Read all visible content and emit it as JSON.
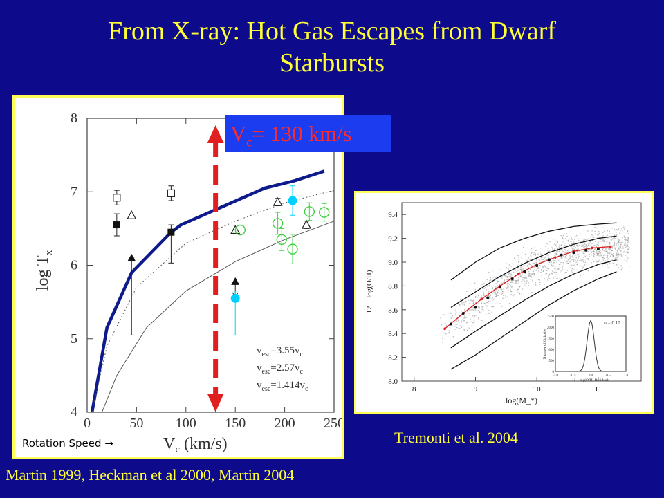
{
  "slide": {
    "title_line1": "From X-ray: Hot Gas Escapes from Dwarf",
    "title_line2": "Starbursts",
    "vc_label_prefix": "V",
    "vc_label_sub": "c",
    "vc_label_suffix": "= 130 km/s",
    "rotation_label": "Rotation Speed →",
    "cite_left": "Martin 1999, Heckman et al 2000, Martin 2004",
    "cite_right": "Tremonti et al. 2004"
  },
  "chart_data": [
    {
      "type": "scatter",
      "xlabel": "V_c (km/s)",
      "ylabel": "log T_x",
      "xlim": [
        0,
        250
      ],
      "ylim": [
        4,
        8
      ],
      "xticks": [
        "0",
        "50",
        "100",
        "150",
        "200",
        "250"
      ],
      "yticks": [
        "4",
        "5",
        "6",
        "7",
        "8"
      ],
      "curves": [
        {
          "name": "v_esc=3.55v_c",
          "style": "thick",
          "color": "#0d1a8c",
          "x": [
            5,
            20,
            45,
            85,
            95,
            180,
            210,
            240
          ],
          "y": [
            4.0,
            5.15,
            5.9,
            6.45,
            6.55,
            7.05,
            7.15,
            7.28
          ]
        },
        {
          "name": "v_esc=2.57v_c",
          "style": "dotted",
          "color": "#555555",
          "x": [
            5,
            20,
            50,
            100,
            150,
            200,
            250
          ],
          "y": [
            4.0,
            4.9,
            5.7,
            6.3,
            6.6,
            6.85,
            7.02
          ]
        },
        {
          "name": "v_esc=1.414v_c",
          "style": "thin",
          "color": "#555555",
          "x": [
            15,
            30,
            60,
            100,
            150,
            200,
            250
          ],
          "y": [
            4.0,
            4.5,
            5.15,
            5.65,
            6.05,
            6.35,
            6.6
          ]
        }
      ],
      "legend_text": [
        "v_esc=3.55v_c",
        "v_esc=2.57v_c",
        "v_esc=1.414v_c"
      ],
      "points": [
        {
          "x": 30,
          "y": 6.92,
          "marker": "open-square",
          "err": [
            0.1,
            0.1
          ]
        },
        {
          "x": 30,
          "y": 6.55,
          "marker": "filled-square",
          "err": [
            0.15,
            0.15
          ]
        },
        {
          "x": 45,
          "y": 6.68,
          "marker": "open-triangle",
          "err": [
            0.0,
            0.0
          ]
        },
        {
          "x": 45,
          "y": 6.1,
          "marker": "filled-triangle",
          "err": [
            1.05,
            0.0
          ]
        },
        {
          "x": 85,
          "y": 6.98,
          "marker": "open-square",
          "err": [
            0.1,
            0.1
          ]
        },
        {
          "x": 85,
          "y": 6.45,
          "marker": "filled-square",
          "err": [
            0.42,
            0.1
          ]
        },
        {
          "x": 150,
          "y": 6.48,
          "marker": "open-triangle",
          "err": [
            0.0,
            0.0
          ]
        },
        {
          "x": 150,
          "y": 5.78,
          "marker": "filled-triangle",
          "err": [
            0.0,
            0.0
          ],
          "upper_limit": true
        },
        {
          "x": 155,
          "y": 6.48,
          "marker": "open-circle",
          "color": "#40d040",
          "err": [
            0.0,
            0.0
          ]
        },
        {
          "x": 150,
          "y": 5.55,
          "marker": "filled-circle",
          "color": "#00d0ff",
          "err": [
            0.5,
            0.1
          ]
        },
        {
          "x": 193,
          "y": 6.86,
          "marker": "open-triangle",
          "err": [
            0.05,
            0.05
          ]
        },
        {
          "x": 193,
          "y": 6.57,
          "marker": "open-circle",
          "color": "#40d040",
          "err": [
            0.15,
            0.15
          ]
        },
        {
          "x": 197,
          "y": 6.35,
          "marker": "open-circle",
          "color": "#40d040",
          "err": [
            0.15,
            0.15
          ]
        },
        {
          "x": 208,
          "y": 6.88,
          "marker": "filled-circle",
          "color": "#00d0ff",
          "err": [
            0.2,
            0.2
          ]
        },
        {
          "x": 208,
          "y": 6.22,
          "marker": "open-circle",
          "color": "#40d040",
          "err": [
            0.2,
            0.2
          ]
        },
        {
          "x": 222,
          "y": 6.55,
          "marker": "open-triangle",
          "err": [
            0.05,
            0.05
          ]
        },
        {
          "x": 225,
          "y": 6.73,
          "marker": "open-circle",
          "color": "#40d040",
          "err": [
            0.12,
            0.12
          ]
        },
        {
          "x": 240,
          "y": 6.72,
          "marker": "open-circle",
          "color": "#40d040",
          "err": [
            0.12,
            0.12
          ]
        }
      ],
      "marker_line": {
        "x": 130,
        "color": "#e02020",
        "style": "dashed-double-arrow"
      }
    },
    {
      "type": "scatter",
      "xlabel": "log(M_*)",
      "ylabel": "12 + log(O/H)",
      "xlim": [
        7.8,
        11.7
      ],
      "ylim": [
        8.0,
        9.5
      ],
      "xticks": [
        "8",
        "9",
        "10",
        "11"
      ],
      "yticks": [
        "8.0",
        "8.2",
        "8.4",
        "8.6",
        "8.8",
        "9.0",
        "9.2",
        "9.4"
      ],
      "fit": {
        "x": [
          8.5,
          8.8,
          9.1,
          9.4,
          9.7,
          10.0,
          10.3,
          10.6,
          10.9,
          11.2
        ],
        "y": [
          8.44,
          8.57,
          8.69,
          8.8,
          8.9,
          8.98,
          9.04,
          9.09,
          9.12,
          9.13
        ]
      },
      "contours": [
        {
          "x": [
            8.6,
            9.0,
            9.4,
            9.8,
            10.2,
            10.6,
            11.0,
            11.3
          ],
          "y": [
            8.85,
            9.0,
            9.12,
            9.2,
            9.26,
            9.3,
            9.32,
            9.33
          ]
        },
        {
          "x": [
            8.6,
            9.0,
            9.4,
            9.8,
            10.2,
            10.6,
            11.0,
            11.3
          ],
          "y": [
            8.62,
            8.75,
            8.88,
            8.99,
            9.08,
            9.15,
            9.2,
            9.22
          ]
        },
        {
          "x": [
            8.6,
            9.0,
            9.4,
            9.8,
            10.2,
            10.6,
            11.0,
            11.3
          ],
          "y": [
            8.28,
            8.42,
            8.55,
            8.68,
            8.8,
            8.9,
            8.98,
            9.02
          ]
        },
        {
          "x": [
            8.6,
            9.0,
            9.4,
            9.8,
            10.2,
            10.6,
            11.0,
            11.3
          ],
          "y": [
            8.1,
            8.22,
            8.36,
            8.5,
            8.64,
            8.76,
            8.86,
            8.92
          ]
        }
      ],
      "binned": {
        "x": [
          8.6,
          8.8,
          9.0,
          9.2,
          9.4,
          9.6,
          9.8,
          10.0,
          10.2,
          10.4,
          10.6,
          10.8,
          11.0
        ],
        "y": [
          8.48,
          8.57,
          8.62,
          8.7,
          8.79,
          8.86,
          8.92,
          8.97,
          9.02,
          9.06,
          9.08,
          9.1,
          9.11
        ]
      },
      "inset": {
        "type": "histogram",
        "xlabel": "12 + log(O/H) Residuals",
        "ylabel": "Number of Galaxies",
        "annotation": "σ = 0.10",
        "xticks": [
          "-1.0",
          "-0.5",
          "0.0",
          "0.5",
          "1.0"
        ],
        "yticks": [
          "0",
          "500",
          "1000",
          "1500",
          "2000",
          "2500"
        ]
      }
    }
  ]
}
